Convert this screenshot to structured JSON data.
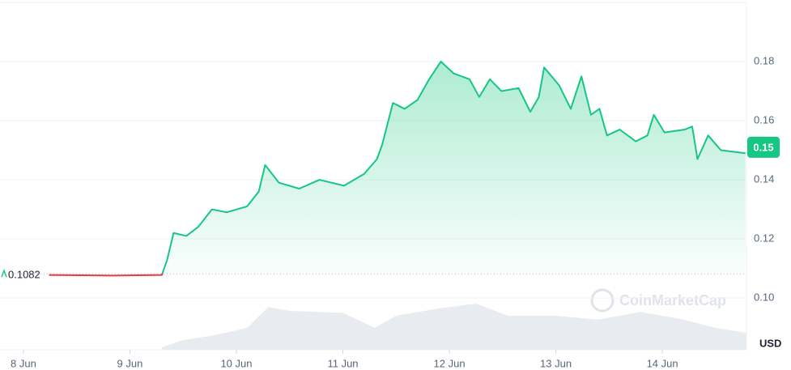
{
  "chart_data": {
    "type": "line",
    "series": [
      {
        "name": "Price",
        "color": "#16c784",
        "x": [
          0.24,
          0.54,
          0.84,
          1.3,
          1.35,
          1.41,
          1.53,
          1.64,
          1.77,
          1.91,
          2.1,
          2.21,
          2.27,
          2.4,
          2.59,
          2.78,
          3.01,
          3.2,
          3.32,
          3.37,
          3.47,
          3.58,
          3.7,
          3.81,
          3.92,
          4.04,
          4.19,
          4.28,
          4.38,
          4.49,
          4.65,
          4.76,
          4.84,
          4.89,
          5.03,
          5.14,
          5.24,
          5.33,
          5.41,
          5.48,
          5.6,
          5.75,
          5.86,
          5.92,
          6.02,
          6.21,
          6.28,
          6.33,
          6.43,
          6.55,
          6.78
        ],
        "values": [
          0.1078,
          0.1077,
          0.1076,
          0.1078,
          0.113,
          0.122,
          0.121,
          0.124,
          0.13,
          0.129,
          0.131,
          0.136,
          0.145,
          0.139,
          0.137,
          0.14,
          0.138,
          0.142,
          0.147,
          0.152,
          0.166,
          0.164,
          0.167,
          0.174,
          0.18,
          0.176,
          0.174,
          0.168,
          0.174,
          0.17,
          0.171,
          0.163,
          0.168,
          0.178,
          0.172,
          0.164,
          0.175,
          0.162,
          0.164,
          0.155,
          0.157,
          0.153,
          0.155,
          0.162,
          0.156,
          0.157,
          0.158,
          0.147,
          0.155,
          0.15,
          0.149
        ]
      }
    ],
    "down_color": "#ea3943",
    "baseline": {
      "value": 0.1082,
      "label": "0.1082"
    },
    "price_tag": {
      "value": 0.151,
      "label": "0.15"
    },
    "volume": {
      "x": [
        1.3,
        1.5,
        1.8,
        2.1,
        2.3,
        2.5,
        3.0,
        3.3,
        3.5,
        3.9,
        4.25,
        4.55,
        5.0,
        5.4,
        5.8,
        6.2,
        6.5,
        6.79
      ],
      "values": [
        5,
        20,
        30,
        45,
        88,
        80,
        76,
        45,
        70,
        85,
        95,
        70,
        70,
        62,
        78,
        62,
        45,
        35
      ]
    },
    "volume_lim": [
      0,
      100
    ],
    "xlim": [
      -0.22,
      6.79
    ],
    "xticks": [
      {
        "value": 0,
        "label": "8 Jun"
      },
      {
        "value": 1,
        "label": "9 Jun"
      },
      {
        "value": 2,
        "label": "10 Jun"
      },
      {
        "value": 3,
        "label": "11 Jun"
      },
      {
        "value": 4,
        "label": "12 Jun"
      },
      {
        "value": 5,
        "label": "13 Jun"
      },
      {
        "value": 6,
        "label": "14 Jun"
      }
    ],
    "ylim": [
      0.0825,
      0.2
    ],
    "yticks": [
      {
        "value": 0.1,
        "label": "0.10"
      },
      0.12,
      0.14,
      0.16,
      0.18
    ],
    "y_unit": "USD",
    "watermark": "CoinMarketCap",
    "grid": true
  }
}
